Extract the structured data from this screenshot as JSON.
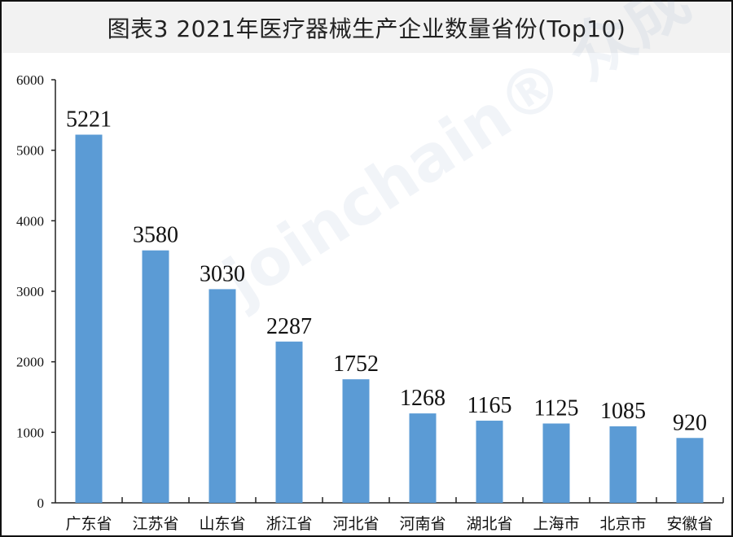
{
  "chart_data": {
    "type": "bar",
    "title": "图表3  2021年医疗器械生产企业数量省份(Top10)",
    "categories": [
      "广东省",
      "江苏省",
      "山东省",
      "浙江省",
      "河北省",
      "河南省",
      "湖北省",
      "上海市",
      "北京市",
      "安徽省"
    ],
    "values": [
      5221,
      3580,
      3030,
      2287,
      1752,
      1268,
      1165,
      1125,
      1085,
      920
    ],
    "xlabel": "",
    "ylabel": "",
    "ylim": [
      0,
      6000
    ],
    "yticks": [
      0,
      1000,
      2000,
      3000,
      4000,
      5000,
      6000
    ],
    "grid": false,
    "legend": "none",
    "bar_color": "#5b9bd5"
  },
  "watermark": "joinchain 众成"
}
